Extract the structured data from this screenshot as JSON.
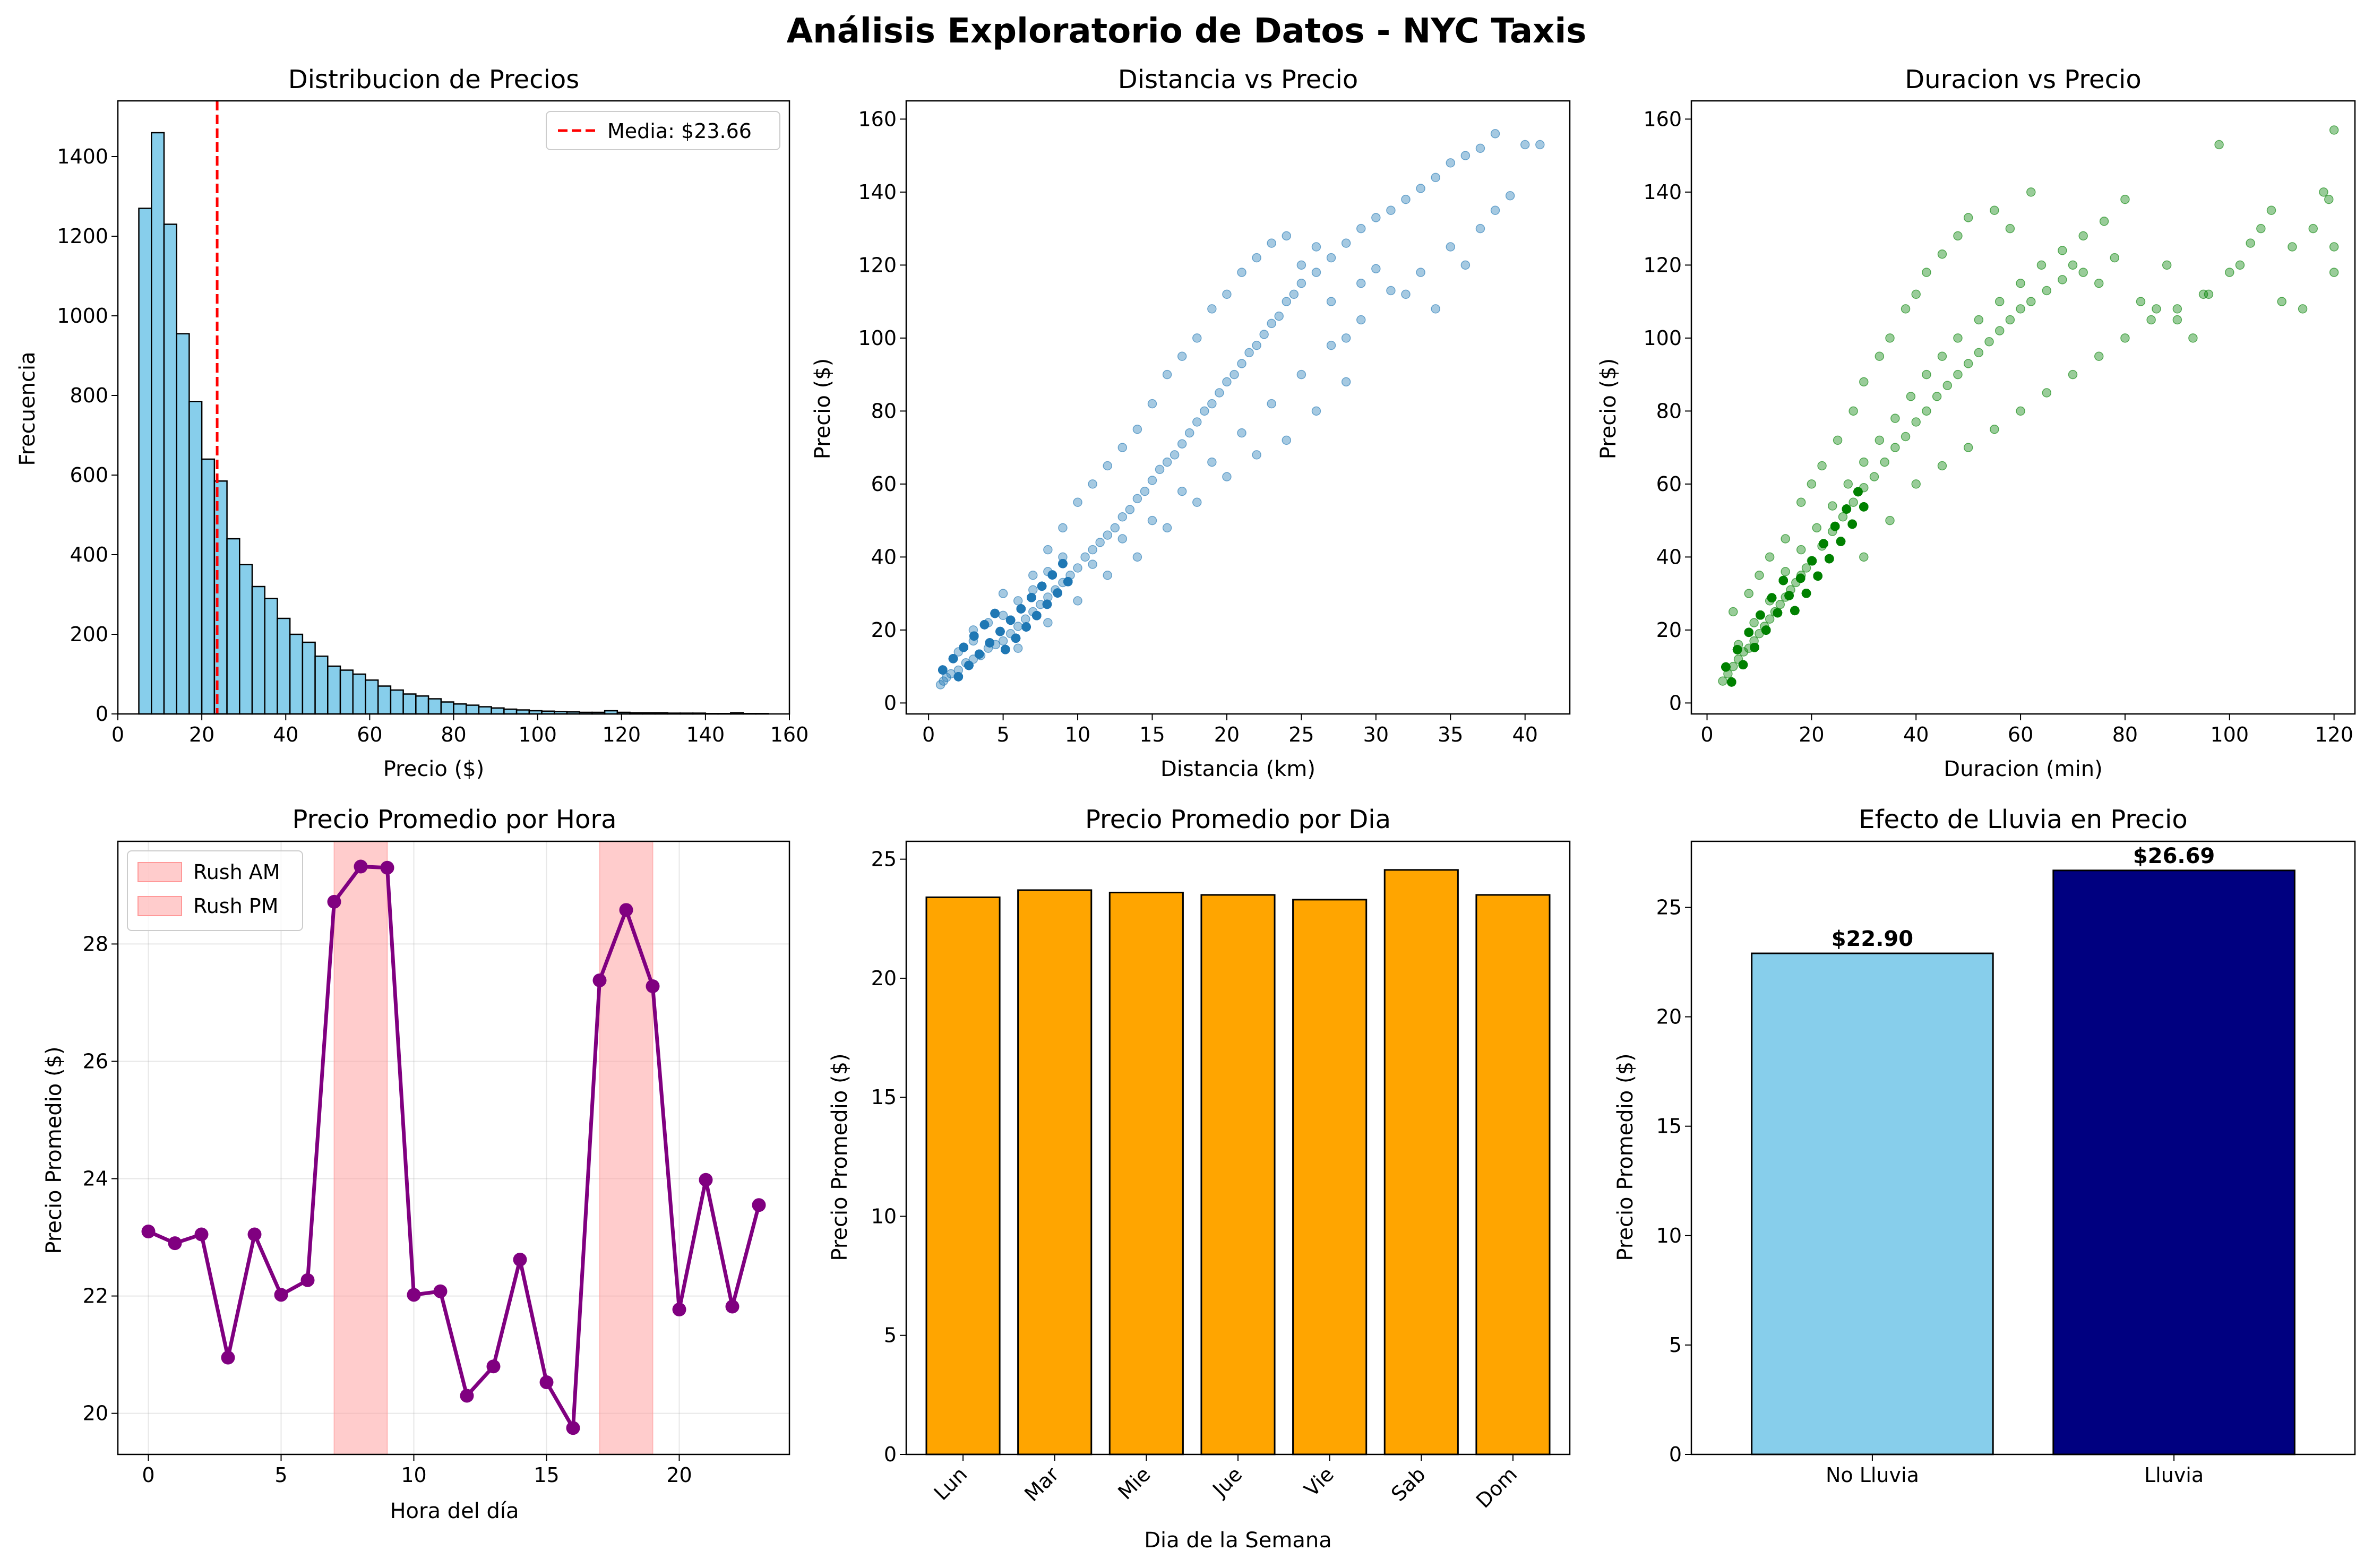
{
  "figure": {
    "title": "Análisis Exploratorio de Datos - NYC Taxis"
  },
  "chart_data": [
    {
      "type": "bar",
      "title": "Distribucion de Precios",
      "xlabel": "Precio ($)",
      "ylabel": "Frecuencia",
      "xlim": [
        0,
        160
      ],
      "ylim": [
        0,
        1540
      ],
      "xticks": [
        0,
        20,
        40,
        60,
        80,
        100,
        120,
        140,
        160
      ],
      "yticks": [
        0,
        200,
        400,
        600,
        800,
        1000,
        1200,
        1400
      ],
      "bin_start": 5,
      "bin_width": 3,
      "values": [
        1270,
        1460,
        1230,
        955,
        785,
        640,
        585,
        440,
        375,
        320,
        290,
        240,
        200,
        180,
        145,
        120,
        110,
        100,
        85,
        70,
        60,
        50,
        45,
        38,
        30,
        25,
        22,
        18,
        15,
        12,
        10,
        8,
        7,
        6,
        5,
        4,
        4,
        8,
        4,
        3,
        3,
        3,
        2,
        2,
        2,
        1,
        1,
        3,
        1,
        1
      ],
      "colors": {
        "bar": "#87CEEB",
        "edge": "#000000",
        "mean_line": "#FF0000"
      },
      "mean_line": {
        "x": 23.66,
        "label": "Media: $23.66"
      },
      "legend_position": "upper right"
    },
    {
      "type": "scatter",
      "title": "Distancia vs Precio",
      "xlabel": "Distancia (km)",
      "ylabel": "Precio ($)",
      "xlim": [
        -1.5,
        43
      ],
      "ylim": [
        -3,
        165
      ],
      "xticks": [
        0,
        5,
        10,
        15,
        20,
        25,
        30,
        35,
        40
      ],
      "yticks": [
        0,
        20,
        40,
        60,
        80,
        100,
        120,
        140,
        160
      ],
      "colors": {
        "point": "#1F77B4"
      },
      "points": [
        [
          1,
          6
        ],
        [
          1.5,
          8
        ],
        [
          2,
          9
        ],
        [
          2.5,
          11
        ],
        [
          3,
          12
        ],
        [
          3.5,
          13
        ],
        [
          4,
          15
        ],
        [
          4.5,
          16
        ],
        [
          5,
          17
        ],
        [
          5.5,
          19
        ],
        [
          6,
          21
        ],
        [
          6.5,
          23
        ],
        [
          7,
          25
        ],
        [
          7.5,
          27
        ],
        [
          8,
          29
        ],
        [
          8.5,
          31
        ],
        [
          9,
          33
        ],
        [
          9.5,
          35
        ],
        [
          10,
          37
        ],
        [
          10.5,
          40
        ],
        [
          11,
          42
        ],
        [
          11.5,
          44
        ],
        [
          12,
          46
        ],
        [
          12.5,
          48
        ],
        [
          13,
          51
        ],
        [
          13.5,
          53
        ],
        [
          14,
          56
        ],
        [
          14.5,
          58
        ],
        [
          15,
          61
        ],
        [
          15.5,
          64
        ],
        [
          16,
          66
        ],
        [
          16.5,
          68
        ],
        [
          17,
          71
        ],
        [
          17.5,
          74
        ],
        [
          18,
          77
        ],
        [
          18.5,
          80
        ],
        [
          19,
          82
        ],
        [
          19.5,
          85
        ],
        [
          20,
          88
        ],
        [
          20.5,
          90
        ],
        [
          21,
          93
        ],
        [
          21.5,
          96
        ],
        [
          22,
          98
        ],
        [
          22.5,
          101
        ],
        [
          23,
          104
        ],
        [
          23.5,
          106
        ],
        [
          24,
          110
        ],
        [
          24.5,
          112
        ],
        [
          25,
          115
        ],
        [
          26,
          118
        ],
        [
          27,
          122
        ],
        [
          28,
          126
        ],
        [
          29,
          130
        ],
        [
          30,
          133
        ],
        [
          31,
          135
        ],
        [
          32,
          138
        ],
        [
          33,
          141
        ],
        [
          34,
          144
        ],
        [
          35,
          148
        ],
        [
          36,
          150
        ],
        [
          37,
          152
        ],
        [
          38,
          156
        ],
        [
          39,
          139
        ],
        [
          40,
          153
        ],
        [
          41,
          153
        ],
        [
          3,
          20
        ],
        [
          5,
          30
        ],
        [
          7,
          35
        ],
        [
          8,
          42
        ],
        [
          9,
          48
        ],
        [
          10,
          55
        ],
        [
          11,
          60
        ],
        [
          12,
          65
        ],
        [
          13,
          70
        ],
        [
          14,
          75
        ],
        [
          15,
          82
        ],
        [
          16,
          90
        ],
        [
          17,
          95
        ],
        [
          18,
          100
        ],
        [
          19,
          108
        ],
        [
          20,
          112
        ],
        [
          21,
          118
        ],
        [
          22,
          122
        ],
        [
          23,
          126
        ],
        [
          24,
          128
        ],
        [
          25,
          120
        ],
        [
          26,
          125
        ],
        [
          27,
          110
        ],
        [
          28,
          100
        ],
        [
          29,
          115
        ],
        [
          30,
          119
        ],
        [
          32,
          112
        ],
        [
          34,
          108
        ],
        [
          36,
          120
        ],
        [
          38,
          135
        ],
        [
          6,
          15
        ],
        [
          8,
          22
        ],
        [
          10,
          28
        ],
        [
          12,
          35
        ],
        [
          14,
          40
        ],
        [
          16,
          48
        ],
        [
          18,
          55
        ],
        [
          20,
          62
        ],
        [
          22,
          68
        ],
        [
          24,
          72
        ],
        [
          26,
          80
        ],
        [
          28,
          88
        ],
        [
          0.8,
          5
        ],
        [
          1.2,
          7
        ],
        [
          2,
          14
        ],
        [
          3,
          17
        ],
        [
          4,
          22
        ],
        [
          5,
          24
        ],
        [
          6,
          28
        ],
        [
          7,
          31
        ],
        [
          8,
          36
        ],
        [
          9,
          40
        ],
        [
          11,
          38
        ],
        [
          13,
          45
        ],
        [
          15,
          50
        ],
        [
          17,
          58
        ],
        [
          19,
          66
        ],
        [
          21,
          74
        ],
        [
          23,
          82
        ],
        [
          25,
          90
        ],
        [
          27,
          98
        ],
        [
          29,
          105
        ],
        [
          31,
          113
        ],
        [
          33,
          118
        ],
        [
          35,
          125
        ],
        [
          37,
          130
        ]
      ]
    },
    {
      "type": "scatter",
      "title": "Duracion vs Precio",
      "xlabel": "Duracion (min)",
      "ylabel": "Precio ($)",
      "xlim": [
        -3,
        124
      ],
      "ylim": [
        -3,
        165
      ],
      "xticks": [
        0,
        20,
        40,
        60,
        80,
        100,
        120
      ],
      "yticks": [
        0,
        20,
        40,
        60,
        80,
        100,
        120,
        140,
        160
      ],
      "colors": {
        "point": "#008000"
      },
      "points": [
        [
          3,
          6
        ],
        [
          4,
          8
        ],
        [
          5,
          10
        ],
        [
          6,
          12
        ],
        [
          7,
          14
        ],
        [
          8,
          15
        ],
        [
          9,
          17
        ],
        [
          10,
          19
        ],
        [
          11,
          21
        ],
        [
          12,
          23
        ],
        [
          13,
          25
        ],
        [
          14,
          27
        ],
        [
          15,
          29
        ],
        [
          16,
          31
        ],
        [
          17,
          33
        ],
        [
          18,
          35
        ],
        [
          19,
          37
        ],
        [
          20,
          39
        ],
        [
          22,
          43
        ],
        [
          24,
          47
        ],
        [
          26,
          51
        ],
        [
          28,
          55
        ],
        [
          30,
          59
        ],
        [
          32,
          62
        ],
        [
          34,
          66
        ],
        [
          36,
          70
        ],
        [
          38,
          73
        ],
        [
          40,
          77
        ],
        [
          42,
          80
        ],
        [
          44,
          84
        ],
        [
          46,
          87
        ],
        [
          48,
          90
        ],
        [
          50,
          93
        ],
        [
          52,
          96
        ],
        [
          54,
          99
        ],
        [
          56,
          102
        ],
        [
          58,
          105
        ],
        [
          60,
          108
        ],
        [
          62,
          110
        ],
        [
          65,
          113
        ],
        [
          68,
          116
        ],
        [
          70,
          120
        ],
        [
          72,
          118
        ],
        [
          75,
          115
        ],
        [
          78,
          122
        ],
        [
          80,
          138
        ],
        [
          83,
          110
        ],
        [
          86,
          108
        ],
        [
          88,
          120
        ],
        [
          90,
          105
        ],
        [
          93,
          100
        ],
        [
          96,
          112
        ],
        [
          98,
          153
        ],
        [
          100,
          118
        ],
        [
          102,
          120
        ],
        [
          104,
          126
        ],
        [
          106,
          130
        ],
        [
          108,
          135
        ],
        [
          110,
          110
        ],
        [
          112,
          125
        ],
        [
          114,
          108
        ],
        [
          116,
          130
        ],
        [
          118,
          140
        ],
        [
          119,
          138
        ],
        [
          120,
          157
        ],
        [
          120,
          125
        ],
        [
          120,
          118
        ],
        [
          5,
          25
        ],
        [
          8,
          30
        ],
        [
          10,
          35
        ],
        [
          12,
          40
        ],
        [
          15,
          45
        ],
        [
          18,
          55
        ],
        [
          20,
          60
        ],
        [
          22,
          65
        ],
        [
          25,
          72
        ],
        [
          28,
          80
        ],
        [
          30,
          88
        ],
        [
          33,
          95
        ],
        [
          35,
          100
        ],
        [
          38,
          108
        ],
        [
          40,
          112
        ],
        [
          42,
          118
        ],
        [
          45,
          123
        ],
        [
          48,
          128
        ],
        [
          50,
          133
        ],
        [
          55,
          135
        ],
        [
          58,
          130
        ],
        [
          62,
          140
        ],
        [
          6,
          16
        ],
        [
          9,
          22
        ],
        [
          12,
          28
        ],
        [
          15,
          36
        ],
        [
          18,
          42
        ],
        [
          21,
          48
        ],
        [
          24,
          54
        ],
        [
          27,
          60
        ],
        [
          30,
          66
        ],
        [
          33,
          72
        ],
        [
          36,
          78
        ],
        [
          39,
          84
        ],
        [
          42,
          90
        ],
        [
          45,
          95
        ],
        [
          48,
          100
        ],
        [
          52,
          105
        ],
        [
          56,
          110
        ],
        [
          60,
          115
        ],
        [
          64,
          120
        ],
        [
          68,
          124
        ],
        [
          72,
          128
        ],
        [
          76,
          132
        ],
        [
          30,
          40
        ],
        [
          35,
          50
        ],
        [
          40,
          60
        ],
        [
          45,
          65
        ],
        [
          50,
          70
        ],
        [
          55,
          75
        ],
        [
          60,
          80
        ],
        [
          65,
          85
        ],
        [
          70,
          90
        ],
        [
          75,
          95
        ],
        [
          80,
          100
        ],
        [
          85,
          105
        ],
        [
          90,
          108
        ],
        [
          95,
          112
        ]
      ]
    },
    {
      "type": "line",
      "title": "Precio Promedio por Hora",
      "xlabel": "Hora del día",
      "ylabel": "Precio Promedio ($)",
      "xlim": [
        -1.15,
        24.15
      ],
      "ylim": [
        19.3,
        29.75
      ],
      "xticks": [
        0,
        5,
        10,
        15,
        20
      ],
      "yticks": [
        20,
        22,
        24,
        26,
        28
      ],
      "grid": true,
      "x": [
        0,
        1,
        2,
        3,
        4,
        5,
        6,
        7,
        8,
        9,
        10,
        11,
        12,
        13,
        14,
        15,
        16,
        17,
        18,
        19,
        20,
        21,
        22,
        23
      ],
      "values": [
        23.1,
        22.9,
        23.05,
        20.95,
        23.05,
        22.02,
        22.27,
        28.72,
        29.32,
        29.3,
        22.02,
        22.08,
        20.3,
        20.8,
        22.62,
        20.53,
        19.75,
        27.38,
        28.58,
        27.28,
        21.77,
        23.98,
        21.82,
        23.55
      ],
      "colors": {
        "line": "#800080",
        "span": "#FF9999"
      },
      "spans": [
        {
          "label": "Rush AM",
          "from": 7,
          "to": 9
        },
        {
          "label": "Rush PM",
          "from": 17,
          "to": 19
        }
      ],
      "legend_position": "upper left"
    },
    {
      "type": "bar",
      "title": "Precio Promedio por Dia",
      "xlabel": "Dia de la Semana",
      "ylabel": "Precio Promedio ($)",
      "ylim": [
        0,
        25.75
      ],
      "yticks": [
        0,
        5,
        10,
        15,
        20,
        25
      ],
      "categories": [
        "Lun",
        "Mar",
        "Mie",
        "Jue",
        "Vie",
        "Sab",
        "Dom"
      ],
      "values": [
        23.4,
        23.7,
        23.6,
        23.5,
        23.3,
        24.55,
        23.5
      ],
      "colors": {
        "bar": "#FFA500",
        "edge": "#000000"
      }
    },
    {
      "type": "bar",
      "title": "Efecto de Lluvia en Precio",
      "xlabel": "",
      "ylabel": "Precio Promedio ($)",
      "ylim": [
        0,
        28.02
      ],
      "yticks": [
        0,
        5,
        10,
        15,
        20,
        25
      ],
      "categories": [
        "No Lluvia",
        "Lluvia"
      ],
      "values": [
        22.9,
        26.69
      ],
      "data_labels": [
        "$22.90",
        "$26.69"
      ],
      "colors": {
        "bars": [
          "#87CEEB",
          "#000080"
        ],
        "edge": "#000000"
      }
    }
  ]
}
